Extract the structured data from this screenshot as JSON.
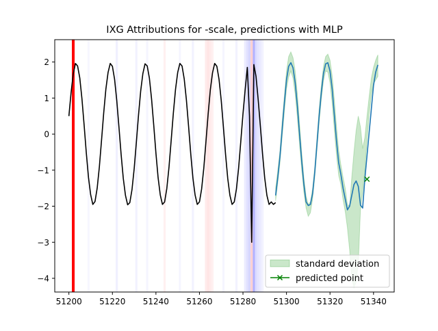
{
  "chart_data": {
    "type": "line",
    "title": "IXG Attributions for -scale, predictions with MLP",
    "xlabel": "",
    "ylabel": "",
    "xlim": [
      51193.5,
      51349.5
    ],
    "ylim": [
      -4.38,
      2.62
    ],
    "xticks": [
      51200,
      51220,
      51240,
      51260,
      51280,
      51300,
      51320,
      51340
    ],
    "yticks": [
      -4,
      -3,
      -2,
      -1,
      0,
      1,
      2
    ],
    "grid": false,
    "legend_position": "lower right",
    "legend": [
      {
        "label": "standard deviation",
        "kind": "band",
        "color": "#2ca02c"
      },
      {
        "label": "predicted point",
        "kind": "marker",
        "color": "#008000"
      }
    ],
    "series": [
      {
        "kind": "line",
        "color": "#000000",
        "x": [
          51200,
          51201,
          51202,
          51203,
          51204,
          51205,
          51206,
          51207,
          51208,
          51209,
          51210,
          51211,
          51212,
          51213,
          51214,
          51215,
          51216,
          51217,
          51218,
          51219,
          51220,
          51221,
          51222,
          51223,
          51224,
          51225,
          51226,
          51227,
          51228,
          51229,
          51230,
          51231,
          51232,
          51233,
          51234,
          51235,
          51236,
          51237,
          51238,
          51239,
          51240,
          51241,
          51242,
          51243,
          51244,
          51245,
          51246,
          51247,
          51248,
          51249,
          51250,
          51251,
          51252,
          51253,
          51254,
          51255,
          51256,
          51257,
          51258,
          51259,
          51260,
          51261,
          51262,
          51263,
          51264,
          51265,
          51266,
          51267,
          51268,
          51269,
          51270,
          51271,
          51272,
          51273,
          51274,
          51275,
          51276,
          51277,
          51278,
          51279,
          51280,
          51281,
          51282,
          51283,
          51284,
          51285,
          51286,
          51287,
          51288,
          51289,
          51290,
          51291,
          51292,
          51293,
          51294,
          51295
        ],
        "y": [
          0.5,
          1.15,
          1.67,
          1.96,
          1.89,
          1.56,
          0.98,
          0.25,
          -0.52,
          -1.2,
          -1.68,
          -1.95,
          -1.87,
          -1.5,
          -0.91,
          -0.17,
          0.59,
          1.25,
          1.71,
          1.96,
          1.88,
          1.52,
          0.93,
          0.2,
          -0.56,
          -1.23,
          -1.7,
          -1.96,
          -1.9,
          -1.54,
          -0.96,
          -0.23,
          0.53,
          1.2,
          1.68,
          1.95,
          1.89,
          1.55,
          0.97,
          0.24,
          -0.53,
          -1.21,
          -1.69,
          -1.95,
          -1.88,
          -1.51,
          -0.92,
          -0.18,
          0.58,
          1.24,
          1.71,
          1.96,
          1.89,
          1.53,
          0.95,
          0.22,
          -0.55,
          -1.22,
          -1.69,
          -1.95,
          -1.88,
          -1.52,
          -0.94,
          -0.2,
          0.56,
          1.23,
          1.7,
          1.96,
          1.88,
          1.52,
          0.94,
          0.2,
          -0.56,
          -1.23,
          -1.7,
          -1.95,
          -1.88,
          -1.52,
          -0.94,
          -0.2,
          0.56,
          1.23,
          1.85,
          0.5,
          -3.0,
          1.93,
          1.6,
          0.95,
          0.22,
          -0.55,
          -1.22,
          -1.7,
          -1.95,
          -1.88,
          -1.95,
          -1.9
        ]
      },
      {
        "kind": "band",
        "name": "standard deviation",
        "color": "#2ca02c",
        "x": [
          51295,
          51296,
          51297,
          51298,
          51299,
          51300,
          51301,
          51302,
          51303,
          51304,
          51305,
          51306,
          51307,
          51308,
          51309,
          51310,
          51311,
          51312,
          51313,
          51314,
          51315,
          51316,
          51317,
          51318,
          51319,
          51320,
          51321,
          51322,
          51323,
          51324,
          51325,
          51326,
          51327,
          51328,
          51329,
          51330,
          51331,
          51332,
          51333,
          51334,
          51335,
          51336,
          51337,
          51338,
          51339,
          51340,
          51341,
          51342
        ],
        "lower": [
          -1.85,
          -1.35,
          -0.8,
          -0.1,
          0.6,
          1.25,
          1.58,
          1.75,
          1.55,
          1.1,
          0.45,
          -0.3,
          -1.0,
          -1.62,
          -2.05,
          -2.28,
          -2.18,
          -1.8,
          -1.2,
          -0.45,
          0.3,
          0.95,
          1.48,
          1.75,
          1.72,
          1.42,
          0.85,
          0.1,
          -0.6,
          -1.15,
          -1.4,
          -1.82,
          -2.15,
          -2.6,
          -3.2,
          -4.0,
          -4.25,
          -4.1,
          -3.6,
          -2.1,
          -1.6,
          -1.0,
          -0.2,
          0.55,
          1.1,
          1.4,
          1.5,
          1.6
        ],
        "upper": [
          -1.5,
          -1.0,
          -0.45,
          0.35,
          1.05,
          1.75,
          2.15,
          2.28,
          2.12,
          1.75,
          1.12,
          0.3,
          -0.5,
          -1.2,
          -1.72,
          -1.95,
          -1.88,
          -1.5,
          -0.9,
          -0.1,
          0.7,
          1.35,
          1.88,
          2.15,
          2.22,
          2.05,
          1.62,
          0.95,
          0.2,
          -0.45,
          -0.85,
          -1.2,
          -1.5,
          -1.95,
          -2.0,
          -1.2,
          -0.5,
          0.1,
          0.5,
          0.2,
          -0.4,
          -0.1,
          0.5,
          1.05,
          1.55,
          1.85,
          2.05,
          2.2
        ]
      },
      {
        "kind": "line",
        "color": "#1f77b4",
        "x": [
          51295,
          51296,
          51297,
          51298,
          51299,
          51300,
          51301,
          51302,
          51303,
          51304,
          51305,
          51306,
          51307,
          51308,
          51309,
          51310,
          51311,
          51312,
          51313,
          51314,
          51315,
          51316,
          51317,
          51318,
          51319,
          51320,
          51321,
          51322,
          51323,
          51324,
          51325,
          51326,
          51327,
          51328,
          51329,
          51330,
          51331,
          51332,
          51333,
          51334,
          51335,
          51336,
          51337,
          51338,
          51339,
          51340,
          51341,
          51342
        ],
        "y": [
          -1.7,
          -1.2,
          -0.62,
          0.12,
          0.85,
          1.5,
          1.88,
          1.98,
          1.84,
          1.42,
          0.78,
          0.0,
          -0.75,
          -1.4,
          -1.88,
          -1.98,
          -1.95,
          -1.65,
          -1.05,
          -0.28,
          0.5,
          1.15,
          1.68,
          1.95,
          1.98,
          1.75,
          1.25,
          0.52,
          -0.2,
          -0.8,
          -1.12,
          -1.5,
          -1.8,
          -2.1,
          -2.0,
          -1.7,
          -1.4,
          -1.3,
          -1.45,
          -1.97,
          -2.05,
          -1.25,
          -0.6,
          0.05,
          0.7,
          1.35,
          1.72,
          1.92
        ]
      }
    ],
    "predicted_point": {
      "name": "predicted point",
      "x": 51337,
      "y": -1.25,
      "color": "#008000"
    },
    "attribution_bands": [
      {
        "x": 51202,
        "color": "#ff0000",
        "opacity": 1.0,
        "width": 1
      },
      {
        "x": 51209,
        "color": "#0000ff",
        "opacity": 0.03,
        "width": 1
      },
      {
        "x": 51222,
        "color": "#0000ff",
        "opacity": 0.06,
        "width": 1
      },
      {
        "x": 51231,
        "color": "#0000ff",
        "opacity": 0.05,
        "width": 1
      },
      {
        "x": 51236,
        "color": "#0000ff",
        "opacity": 0.04,
        "width": 1
      },
      {
        "x": 51244,
        "color": "#ff0000",
        "opacity": 0.06,
        "width": 1
      },
      {
        "x": 51251,
        "color": "#0000ff",
        "opacity": 0.04,
        "width": 1
      },
      {
        "x": 51257,
        "color": "#0000ff",
        "opacity": 0.05,
        "width": 1
      },
      {
        "x": 51263,
        "color": "#ff0000",
        "opacity": 0.08,
        "width": 1
      },
      {
        "x": 51264,
        "color": "#ff0000",
        "opacity": 0.1,
        "width": 1
      },
      {
        "x": 51265,
        "color": "#ff0000",
        "opacity": 0.08,
        "width": 1
      },
      {
        "x": 51266,
        "color": "#ff0000",
        "opacity": 0.06,
        "width": 1
      },
      {
        "x": 51271,
        "color": "#0000ff",
        "opacity": 0.04,
        "width": 1
      },
      {
        "x": 51277,
        "color": "#0000ff",
        "opacity": 0.05,
        "width": 1
      },
      {
        "x": 51281,
        "color": "#0000ff",
        "opacity": 0.08,
        "width": 1
      },
      {
        "x": 51282,
        "color": "#0000ff",
        "opacity": 0.12,
        "width": 1
      },
      {
        "x": 51283,
        "color": "#0000ff",
        "opacity": 0.16,
        "width": 1
      },
      {
        "x": 51284,
        "color": "#ff0000",
        "opacity": 0.18,
        "width": 1
      },
      {
        "x": 51285,
        "color": "#0000ff",
        "opacity": 0.3,
        "width": 1
      },
      {
        "x": 51286,
        "color": "#0000ff",
        "opacity": 0.14,
        "width": 1
      },
      {
        "x": 51287,
        "color": "#0000ff",
        "opacity": 0.1,
        "width": 1
      },
      {
        "x": 51288,
        "color": "#0000ff",
        "opacity": 0.08,
        "width": 1
      },
      {
        "x": 51289,
        "color": "#0000ff",
        "opacity": 0.05,
        "width": 1
      }
    ]
  }
}
